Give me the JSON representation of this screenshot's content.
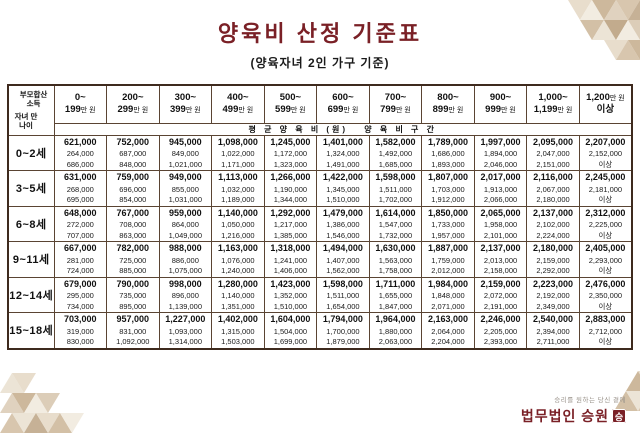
{
  "page": {
    "title": "양육비 산정 기준표",
    "subtitle": "(양육자녀 2인 가구 기준)"
  },
  "colors": {
    "accent": "#7a2026",
    "table_border": "#5a4433"
  },
  "table": {
    "corner_top": "부모합산 소득",
    "corner_bottom": "자녀 만 나이",
    "band_label": "평 균 양 육 비 (원)　 양 육 비 구 간",
    "col_headers": [
      [
        "0~",
        "199만 원"
      ],
      [
        "200~",
        "299만 원"
      ],
      [
        "300~",
        "399만 원"
      ],
      [
        "400~",
        "499만 원"
      ],
      [
        "500~",
        "599만 원"
      ],
      [
        "600~",
        "699만 원"
      ],
      [
        "700~",
        "799만 원"
      ],
      [
        "800~",
        "899만 원"
      ],
      [
        "900~",
        "999만 원"
      ],
      [
        "1,000~",
        "1,199만 원"
      ],
      [
        "1,200만 원",
        "이상"
      ]
    ],
    "rows": [
      {
        "age": "0~2세",
        "cells": [
          [
            "621,000",
            "264,000",
            "686,000"
          ],
          [
            "752,000",
            "687,000",
            "848,000"
          ],
          [
            "945,000",
            "849,000",
            "1,021,000"
          ],
          [
            "1,098,000",
            "1,022,000",
            "1,171,000"
          ],
          [
            "1,245,000",
            "1,172,000",
            "1,323,000"
          ],
          [
            "1,401,000",
            "1,324,000",
            "1,491,000"
          ],
          [
            "1,582,000",
            "1,492,000",
            "1,685,000"
          ],
          [
            "1,789,000",
            "1,686,000",
            "1,893,000"
          ],
          [
            "1,997,000",
            "1,894,000",
            "2,046,000"
          ],
          [
            "2,095,000",
            "2,047,000",
            "2,151,000"
          ],
          [
            "2,207,000",
            "2,152,000",
            "이상"
          ]
        ]
      },
      {
        "age": "3~5세",
        "cells": [
          [
            "631,000",
            "268,000",
            "695,000"
          ],
          [
            "759,000",
            "696,000",
            "854,000"
          ],
          [
            "949,000",
            "855,000",
            "1,031,000"
          ],
          [
            "1,113,000",
            "1,032,000",
            "1,189,000"
          ],
          [
            "1,266,000",
            "1,190,000",
            "1,344,000"
          ],
          [
            "1,422,000",
            "1,345,000",
            "1,510,000"
          ],
          [
            "1,598,000",
            "1,511,000",
            "1,702,000"
          ],
          [
            "1,807,000",
            "1,703,000",
            "1,912,000"
          ],
          [
            "2,017,000",
            "1,913,000",
            "2,066,000"
          ],
          [
            "2,116,000",
            "2,067,000",
            "2,180,000"
          ],
          [
            "2,245,000",
            "2,181,000",
            "이상"
          ]
        ]
      },
      {
        "age": "6~8세",
        "cells": [
          [
            "648,000",
            "272,000",
            "707,000"
          ],
          [
            "767,000",
            "708,000",
            "863,000"
          ],
          [
            "959,000",
            "864,000",
            "1,049,000"
          ],
          [
            "1,140,000",
            "1,050,000",
            "1,216,000"
          ],
          [
            "1,292,000",
            "1,217,000",
            "1,385,000"
          ],
          [
            "1,479,000",
            "1,386,000",
            "1,546,000"
          ],
          [
            "1,614,000",
            "1,547,000",
            "1,732,000"
          ],
          [
            "1,850,000",
            "1,733,000",
            "1,957,000"
          ],
          [
            "2,065,000",
            "1,958,000",
            "2,101,000"
          ],
          [
            "2,137,000",
            "2,102,000",
            "2,224,000"
          ],
          [
            "2,312,000",
            "2,225,000",
            "이상"
          ]
        ]
      },
      {
        "age": "9~11세",
        "cells": [
          [
            "667,000",
            "281,000",
            "724,000"
          ],
          [
            "782,000",
            "725,000",
            "885,000"
          ],
          [
            "988,000",
            "886,000",
            "1,075,000"
          ],
          [
            "1,163,000",
            "1,076,000",
            "1,240,000"
          ],
          [
            "1,318,000",
            "1,241,000",
            "1,406,000"
          ],
          [
            "1,494,000",
            "1,407,000",
            "1,562,000"
          ],
          [
            "1,630,000",
            "1,563,000",
            "1,758,000"
          ],
          [
            "1,887,000",
            "1,759,000",
            "2,012,000"
          ],
          [
            "2,137,000",
            "2,013,000",
            "2,158,000"
          ],
          [
            "2,180,000",
            "2,159,000",
            "2,292,000"
          ],
          [
            "2,405,000",
            "2,293,000",
            "이상"
          ]
        ]
      },
      {
        "age": "12~14세",
        "cells": [
          [
            "679,000",
            "295,000",
            "734,000"
          ],
          [
            "790,000",
            "735,000",
            "895,000"
          ],
          [
            "998,000",
            "896,000",
            "1,139,000"
          ],
          [
            "1,280,000",
            "1,140,000",
            "1,351,000"
          ],
          [
            "1,423,000",
            "1,352,000",
            "1,510,000"
          ],
          [
            "1,598,000",
            "1,511,000",
            "1,654,000"
          ],
          [
            "1,711,000",
            "1,655,000",
            "1,847,000"
          ],
          [
            "1,984,000",
            "1,848,000",
            "2,071,000"
          ],
          [
            "2,159,000",
            "2,072,000",
            "2,191,000"
          ],
          [
            "2,223,000",
            "2,192,000",
            "2,349,000"
          ],
          [
            "2,476,000",
            "2,350,000",
            "이상"
          ]
        ]
      },
      {
        "age": "15~18세",
        "cells": [
          [
            "703,000",
            "319,000",
            "830,000"
          ],
          [
            "957,000",
            "831,000",
            "1,092,000"
          ],
          [
            "1,227,000",
            "1,093,000",
            "1,314,000"
          ],
          [
            "1,402,000",
            "1,315,000",
            "1,503,000"
          ],
          [
            "1,604,000",
            "1,504,000",
            "1,699,000"
          ],
          [
            "1,794,000",
            "1,700,000",
            "1,879,000"
          ],
          [
            "1,964,000",
            "1,880,000",
            "2,063,000"
          ],
          [
            "2,163,000",
            "2,064,000",
            "2,204,000"
          ],
          [
            "2,246,000",
            "2,205,000",
            "2,393,000"
          ],
          [
            "2,540,000",
            "2,394,000",
            "2,711,000"
          ],
          [
            "2,883,000",
            "2,712,000",
            "이상"
          ]
        ]
      }
    ]
  },
  "footer": {
    "tagline": "승리를 원하는 당신 곁에",
    "firm": "법무법인 승원",
    "seal": "승"
  }
}
